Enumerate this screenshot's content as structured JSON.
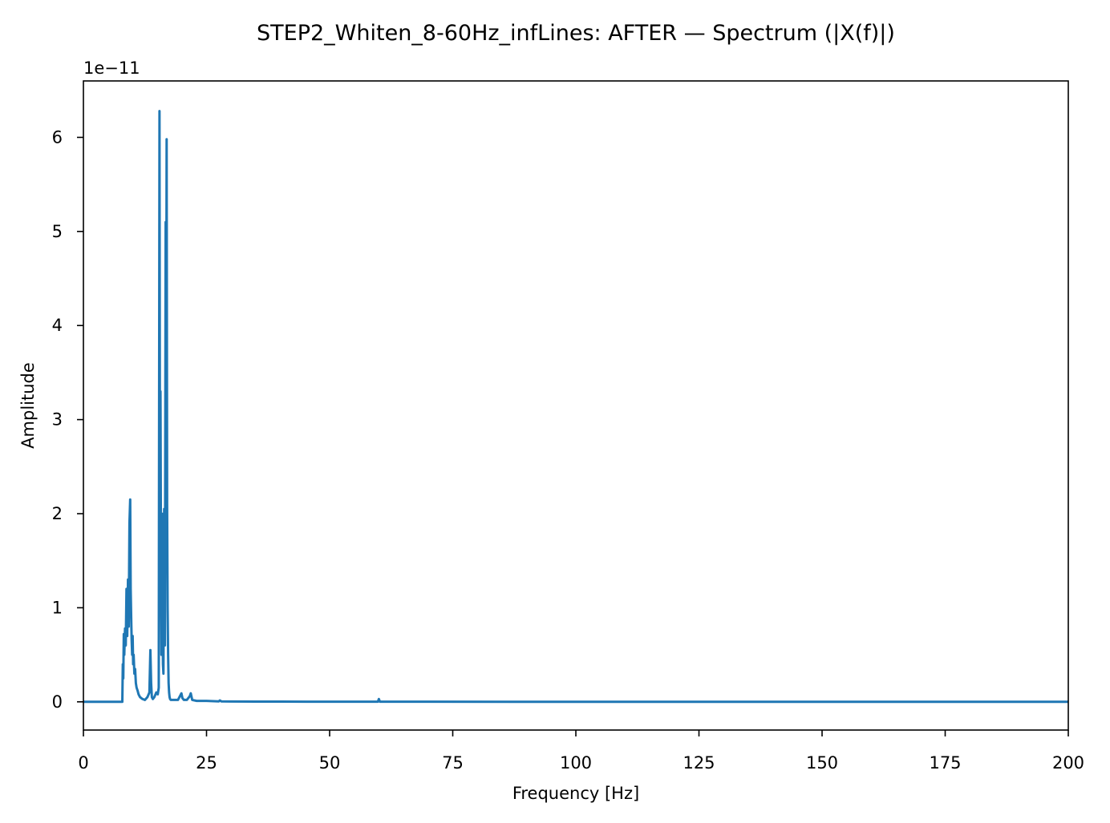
{
  "chart_data": {
    "type": "line",
    "title": "STEP2_Whiten_8-60Hz_infLines: AFTER — Spectrum (|X(f)|)",
    "xlabel": "Frequency [Hz]",
    "ylabel": "Amplitude",
    "y_offset_label": "1e−11",
    "xlim": [
      0,
      200
    ],
    "ylim": [
      -0.3,
      6.6
    ],
    "y_scale_note": "values in units of 1e-11",
    "x_ticks": [
      0,
      25,
      50,
      75,
      100,
      125,
      150,
      175,
      200
    ],
    "x_tick_labels": [
      "0",
      "25",
      "50",
      "75",
      "100",
      "125",
      "150",
      "175",
      "200"
    ],
    "y_ticks": [
      0,
      1,
      2,
      3,
      4,
      5,
      6
    ],
    "y_tick_labels": [
      "0",
      "1",
      "2",
      "3",
      "4",
      "5",
      "6"
    ],
    "grid": false,
    "legend": "none",
    "series": [
      {
        "color": "#1f77b4",
        "x": [
          0,
          7.9,
          8.0,
          8.1,
          8.2,
          8.3,
          8.45,
          8.6,
          8.75,
          8.9,
          9.05,
          9.2,
          9.35,
          9.5,
          9.6,
          9.7,
          9.8,
          9.9,
          10.0,
          10.1,
          10.2,
          10.35,
          10.5,
          10.65,
          10.8,
          11.0,
          11.2,
          11.5,
          12.0,
          12.5,
          13.0,
          13.4,
          13.6,
          13.75,
          13.9,
          14.1,
          14.4,
          14.8,
          15.1,
          15.3,
          15.45,
          15.55,
          15.65,
          15.75,
          15.85,
          15.95,
          16.05,
          16.15,
          16.25,
          16.4,
          16.55,
          16.7,
          16.8,
          16.9,
          17.0,
          17.1,
          17.2,
          17.3,
          17.4,
          17.5,
          17.6,
          17.75,
          17.9,
          18.1,
          18.5,
          19.2,
          19.9,
          20.1,
          20.4,
          21.0,
          21.6,
          21.8,
          22.1,
          23.0,
          25.0,
          27.5,
          27.7,
          28.0,
          30.0,
          35.0,
          40.0,
          50.0,
          59.8,
          60.0,
          60.2,
          70.0,
          100.0,
          150.0,
          200.0
        ],
        "y": [
          0,
          0,
          0.4,
          0.25,
          0.72,
          0.5,
          0.78,
          0.6,
          1.2,
          0.7,
          1.3,
          0.8,
          1.9,
          2.15,
          1.2,
          0.9,
          0.65,
          0.5,
          0.7,
          0.4,
          0.5,
          0.3,
          0.35,
          0.2,
          0.15,
          0.12,
          0.08,
          0.05,
          0.03,
          0.02,
          0.05,
          0.1,
          0.55,
          0.2,
          0.05,
          0.03,
          0.05,
          0.1,
          0.08,
          0.15,
          6.28,
          2.0,
          3.3,
          1.5,
          0.5,
          2.0,
          1.2,
          0.4,
          0.3,
          2.05,
          0.6,
          5.1,
          3.0,
          5.98,
          2.1,
          1.0,
          0.5,
          0.2,
          0.1,
          0.05,
          0.03,
          0.02,
          0.02,
          0.02,
          0.02,
          0.02,
          0.09,
          0.04,
          0.02,
          0.02,
          0.06,
          0.09,
          0.02,
          0.01,
          0.01,
          0.005,
          0.015,
          0.005,
          0.003,
          0.002,
          0.002,
          0.001,
          0.001,
          0.03,
          0.001,
          0.001,
          0.0005,
          0.0003,
          0.0002
        ]
      }
    ]
  }
}
